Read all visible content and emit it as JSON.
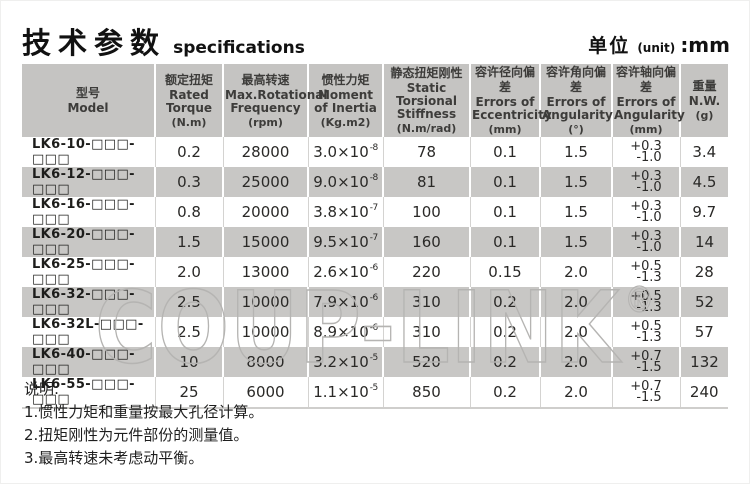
{
  "page": {
    "title_zh": "技术参数",
    "title_en": "specifications",
    "unit": {
      "zh": "单位",
      "en": "(unit)",
      "value": ":mm"
    }
  },
  "table": {
    "columns": [
      {
        "zh": "型号",
        "en": "Model",
        "unit": ""
      },
      {
        "zh": "额定扭矩",
        "en": "Rated\nTorque",
        "unit": "(N.m)"
      },
      {
        "zh": "最高转速",
        "en": "Max.Rotational\nFrequency",
        "unit": "(rpm)"
      },
      {
        "zh": "惯性力矩",
        "en": "Moment\nof Inertia",
        "unit": "(Kg.m2)"
      },
      {
        "zh": "静态扭矩刚性",
        "en": "Static Torsional\nStiffness",
        "unit": "(N.m/rad)"
      },
      {
        "zh": "容许径向偏差",
        "en": "Errors of\nEccentricity",
        "unit": "(mm)"
      },
      {
        "zh": "容许角向偏差",
        "en": "Errors of\nAngularity",
        "unit": "(°)"
      },
      {
        "zh": "容许轴向偏差",
        "en": "Errors of\nAngularity",
        "unit": "(mm)"
      },
      {
        "zh": "重量",
        "en": "N.W.",
        "unit": "(g)"
      }
    ],
    "rows": [
      {
        "model": "LK6-10-□□□-□□□",
        "torque": "0.2",
        "speed": "28000",
        "inertia": {
          "base": "3.0",
          "exp": "-8"
        },
        "stiffness": "78",
        "ecc": "0.1",
        "ang": "1.5",
        "axial": {
          "plus": "+0.3",
          "minus": "-1.0"
        },
        "weight": "3.4"
      },
      {
        "model": "LK6-12-□□□-□□□",
        "torque": "0.3",
        "speed": "25000",
        "inertia": {
          "base": "9.0",
          "exp": "-8"
        },
        "stiffness": "81",
        "ecc": "0.1",
        "ang": "1.5",
        "axial": {
          "plus": "+0.3",
          "minus": "-1.0"
        },
        "weight": "4.5"
      },
      {
        "model": "LK6-16-□□□-□□□",
        "torque": "0.8",
        "speed": "20000",
        "inertia": {
          "base": "3.8",
          "exp": "-7"
        },
        "stiffness": "100",
        "ecc": "0.1",
        "ang": "1.5",
        "axial": {
          "plus": "+0.3",
          "minus": "-1.0"
        },
        "weight": "9.7"
      },
      {
        "model": "LK6-20-□□□-□□□",
        "torque": "1.5",
        "speed": "15000",
        "inertia": {
          "base": "9.5",
          "exp": "-7"
        },
        "stiffness": "160",
        "ecc": "0.1",
        "ang": "1.5",
        "axial": {
          "plus": "+0.3",
          "minus": "-1.0"
        },
        "weight": "14"
      },
      {
        "model": "LK6-25-□□□-□□□",
        "torque": "2.0",
        "speed": "13000",
        "inertia": {
          "base": "2.6",
          "exp": "-6"
        },
        "stiffness": "220",
        "ecc": "0.15",
        "ang": "2.0",
        "axial": {
          "plus": "+0.5",
          "minus": "-1.3"
        },
        "weight": "28"
      },
      {
        "model": "LK6-32-□□□-□□□",
        "torque": "2.5",
        "speed": "10000",
        "inertia": {
          "base": "7.9",
          "exp": "-6"
        },
        "stiffness": "310",
        "ecc": "0.2",
        "ang": "2.0",
        "axial": {
          "plus": "+0.5",
          "minus": "-1.3"
        },
        "weight": "52"
      },
      {
        "model": "LK6-32L-□□□-□□□",
        "torque": "2.5",
        "speed": "10000",
        "inertia": {
          "base": "8.9",
          "exp": "-6"
        },
        "stiffness": "310",
        "ecc": "0.2",
        "ang": "2.0",
        "axial": {
          "plus": "+0.5",
          "minus": "-1.3"
        },
        "weight": "57"
      },
      {
        "model": "LK6-40-□□□-□□□",
        "torque": "10",
        "speed": "8000",
        "inertia": {
          "base": "3.2",
          "exp": "-5"
        },
        "stiffness": "520",
        "ecc": "0.2",
        "ang": "2.0",
        "axial": {
          "plus": "+0.7",
          "minus": "-1.5"
        },
        "weight": "132"
      },
      {
        "model": "LK6-55-□□□-□□□",
        "torque": "25",
        "speed": "6000",
        "inertia": {
          "base": "1.1",
          "exp": "-5"
        },
        "stiffness": "850",
        "ecc": "0.2",
        "ang": "2.0",
        "axial": {
          "plus": "+0.7",
          "minus": "-1.5"
        },
        "weight": "240"
      }
    ]
  },
  "notes": {
    "title": "说明:",
    "items": [
      "1.惯性力矩和重量按最大孔径计算。",
      "2.扭矩刚性为元件部份的测量值。",
      "3.最高转速未考虑动平衡。"
    ]
  },
  "watermark": {
    "text": "COUP-LINK",
    "reg": "®"
  },
  "colors": {
    "header_gray": "#c5c4c2",
    "stripe_gray": "#c8c7c5",
    "watermark_gray": "#b5b4b2",
    "text_ink": "#2a2927"
  }
}
